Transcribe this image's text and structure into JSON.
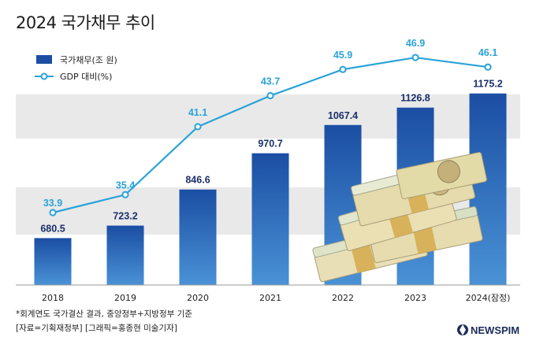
{
  "title": "2024 국가채무 추이",
  "legend": {
    "bar": "국가채무(조 원)",
    "line": "GDP 대비(%)"
  },
  "notes": [
    "*회계연도 국가결산 결과, 중앙정부+지방정부 기준",
    "[자료=기획재정부] [그래픽=홍종현 미술기자]"
  ],
  "brand": "NEWSPIM",
  "colors": {
    "bar_top": "#1b4ea3",
    "bar_bottom": "#3c86cf",
    "line": "#2aa3d8",
    "bar_label": "#1a2f6a",
    "band": "#e9e9e9"
  },
  "chart_data": {
    "type": "bar",
    "categories": [
      "2018",
      "2019",
      "2020",
      "2021",
      "2022",
      "2023",
      "2024(잠정)"
    ],
    "series": [
      {
        "name": "국가채무(조 원)",
        "type": "bar",
        "values": [
          680.5,
          723.2,
          846.6,
          970.7,
          1067.4,
          1126.8,
          1175.2
        ]
      },
      {
        "name": "GDP 대비(%)",
        "type": "line",
        "values": [
          33.9,
          35.4,
          41.1,
          43.7,
          45.9,
          46.9,
          46.1
        ]
      }
    ]
  }
}
